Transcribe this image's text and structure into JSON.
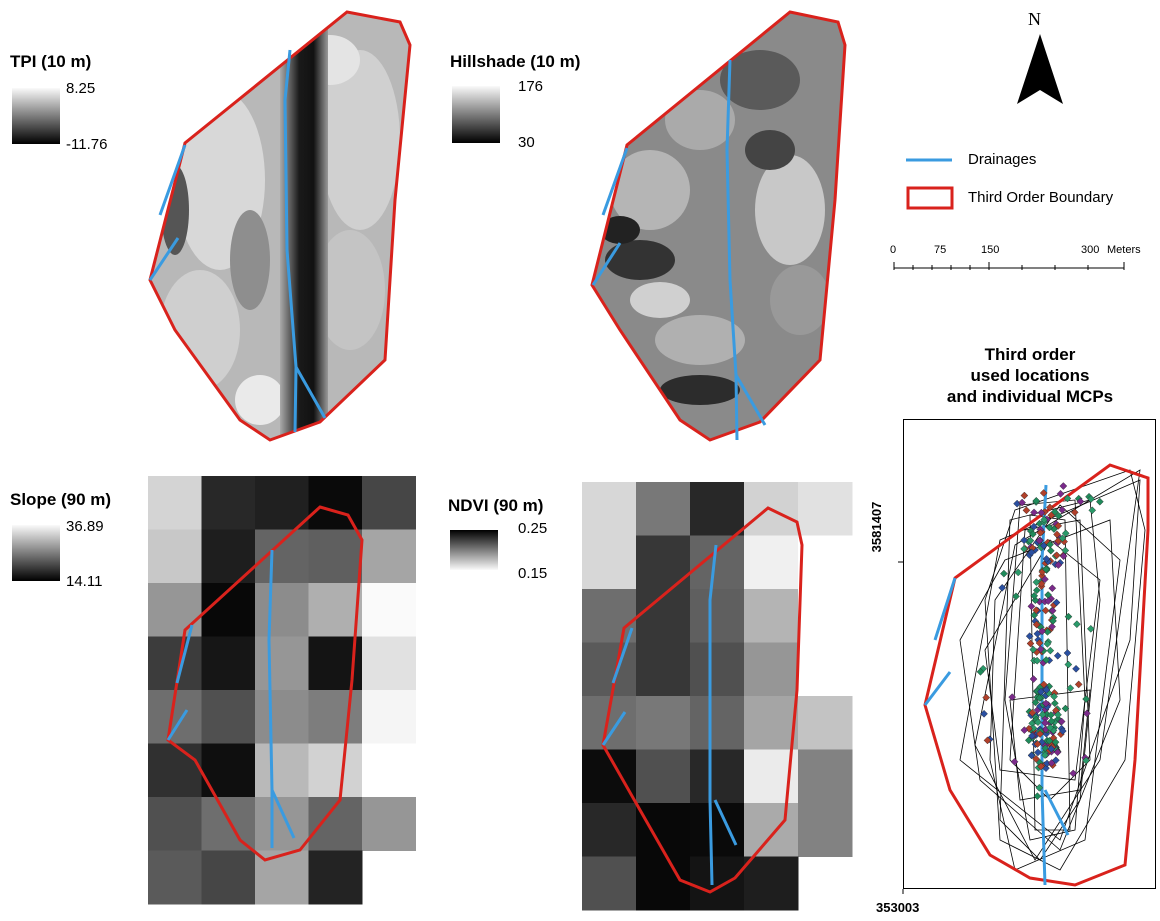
{
  "panels": {
    "tpi": {
      "title": "TPI (10 m)",
      "max": "8.25",
      "min": "-11.76"
    },
    "hillshade": {
      "title": "Hillshade (10 m)",
      "max": "176",
      "min": "30"
    },
    "slope": {
      "title": "Slope (90 m)",
      "max": "36.89",
      "min": "14.11"
    },
    "ndvi": {
      "title": "NDVI (90 m)",
      "max": "0.25",
      "min": "0.15"
    }
  },
  "north_arrow": {
    "label": "N"
  },
  "legend": {
    "drainages": {
      "label": "Drainages",
      "color": "#3a9be0"
    },
    "boundary": {
      "label": "Third Order Boundary",
      "color": "#d9221c"
    }
  },
  "scale_bar": {
    "ticks": [
      "0",
      "75",
      "150",
      "300"
    ],
    "unit": "Meters"
  },
  "used_locations": {
    "title_line1": "Third order",
    "title_line2": "used locations",
    "title_line3": "and individual MCPs",
    "y_coord": "3581407",
    "x_coord": "353003"
  },
  "colors": {
    "drainage": "#3a9be0",
    "boundary": "#d9221c"
  }
}
